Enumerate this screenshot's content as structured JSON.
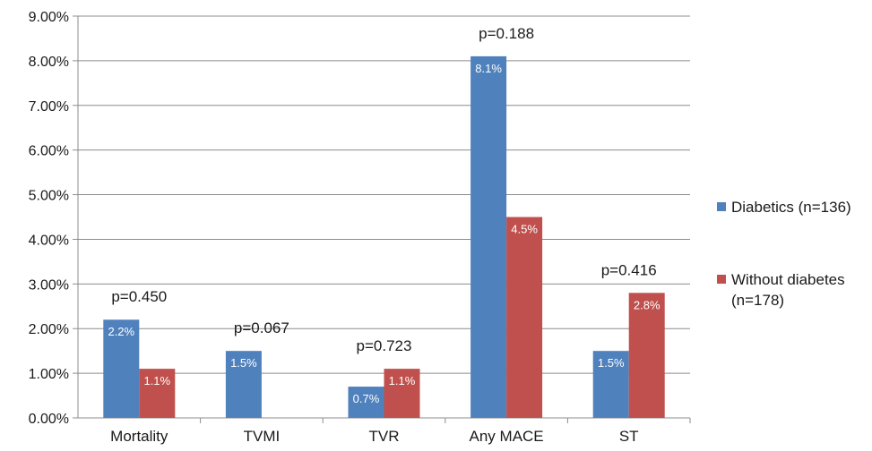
{
  "chart_data": {
    "type": "bar",
    "title": "",
    "xlabel": "",
    "ylabel": "",
    "categories": [
      "Mortality",
      "TVMI",
      "TVR",
      "Any MACE",
      "ST"
    ],
    "series": [
      {
        "name": "Diabetics (n=136)",
        "color": "#4f81bd",
        "values": [
          2.2,
          1.5,
          0.7,
          8.1,
          1.5
        ],
        "labels": [
          "2.2%",
          "1.5%",
          "0.7%",
          "8.1%",
          "1.5%"
        ]
      },
      {
        "name": "Without diabetes (n=178)",
        "color": "#c0504d",
        "values": [
          1.1,
          0,
          1.1,
          4.5,
          2.8
        ],
        "labels": [
          "1.1%",
          "",
          "1.1%",
          "4.5%",
          "2.8%"
        ]
      }
    ],
    "legend_lines": [
      [
        "Diabetics (n=136)"
      ],
      [
        "Without diabetes",
        "(n=178)"
      ]
    ],
    "p_values": [
      "p=0.450",
      "p=0.067",
      "p=0.723",
      "p=0.188",
      "p=0.416"
    ],
    "ylim": [
      0,
      9
    ],
    "yticks": [
      0,
      1,
      2,
      3,
      4,
      5,
      6,
      7,
      8,
      9
    ],
    "ytick_labels": [
      "0.00%",
      "1.00%",
      "2.00%",
      "3.00%",
      "4.00%",
      "5.00%",
      "6.00%",
      "7.00%",
      "8.00%",
      "9.00%"
    ],
    "grid": true,
    "legend_position": "right"
  }
}
